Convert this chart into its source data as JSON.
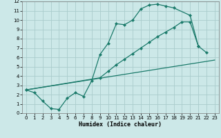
{
  "bg_color": "#cce8e8",
  "grid_color": "#aacccc",
  "line_color": "#1a7a6a",
  "xlabel": "Humidex (Indice chaleur)",
  "xlim": [
    -0.5,
    23.5
  ],
  "ylim": [
    0,
    12
  ],
  "xticks": [
    0,
    1,
    2,
    3,
    4,
    5,
    6,
    7,
    8,
    9,
    10,
    11,
    12,
    13,
    14,
    15,
    16,
    17,
    18,
    19,
    20,
    21,
    22,
    23
  ],
  "yticks": [
    0,
    1,
    2,
    3,
    4,
    5,
    6,
    7,
    8,
    9,
    10,
    11,
    12
  ],
  "curve1_x": [
    0,
    1,
    2,
    3,
    4,
    5,
    6,
    7,
    8,
    9,
    10,
    11,
    12,
    13,
    14,
    15,
    16,
    17,
    18,
    20,
    21
  ],
  "curve1_y": [
    2.5,
    2.2,
    1.3,
    0.5,
    0.4,
    1.6,
    2.2,
    1.8,
    3.5,
    6.3,
    7.5,
    9.6,
    9.5,
    10.0,
    11.2,
    11.6,
    11.7,
    11.5,
    11.3,
    10.5,
    7.2
  ],
  "curve2_x": [
    0,
    9,
    10,
    11,
    12,
    13,
    14,
    15,
    16,
    17,
    18,
    19,
    20,
    21,
    22
  ],
  "curve2_y": [
    2.5,
    3.8,
    4.5,
    5.2,
    5.8,
    6.4,
    7.0,
    7.6,
    8.2,
    8.7,
    9.2,
    9.8,
    9.8,
    7.2,
    6.5
  ],
  "curve3_x": [
    0,
    23
  ],
  "curve3_y": [
    2.5,
    5.7
  ]
}
